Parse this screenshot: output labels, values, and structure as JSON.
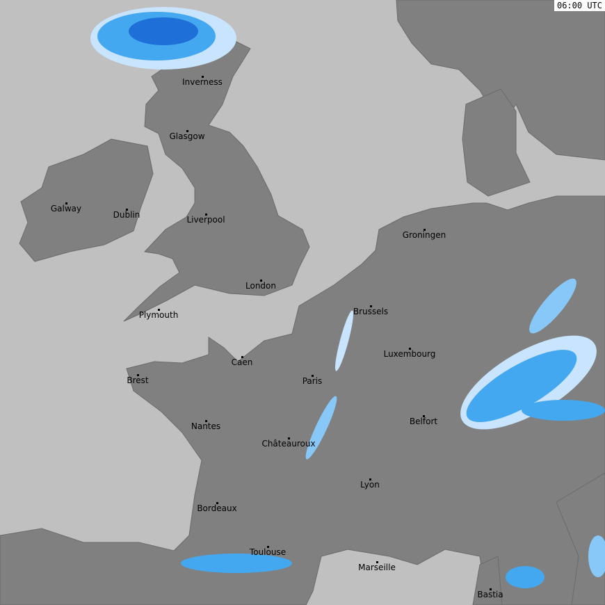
{
  "timestamp": "06:00 UTC",
  "colors": {
    "sea": "#c0c0c0",
    "land": "#808080",
    "precip_light": "#c8e4ff",
    "precip_medium": "#44a8f0",
    "precip_heavy": "#1e6fd8"
  },
  "cities": [
    {
      "name": "Inverness"
    },
    {
      "name": "Glasgow"
    },
    {
      "name": "Galway"
    },
    {
      "name": "Dublin"
    },
    {
      "name": "Liverpool"
    },
    {
      "name": "London"
    },
    {
      "name": "Plymouth"
    },
    {
      "name": "Groningen"
    },
    {
      "name": "Brussels"
    },
    {
      "name": "Luxembourg"
    },
    {
      "name": "Caen"
    },
    {
      "name": "Paris"
    },
    {
      "name": "Brest"
    },
    {
      "name": "Nantes"
    },
    {
      "name": "Châteauroux"
    },
    {
      "name": "Belfort"
    },
    {
      "name": "Lyon"
    },
    {
      "name": "Bordeaux"
    },
    {
      "name": "Toulouse"
    },
    {
      "name": "Marseille"
    },
    {
      "name": "Bastia"
    }
  ]
}
